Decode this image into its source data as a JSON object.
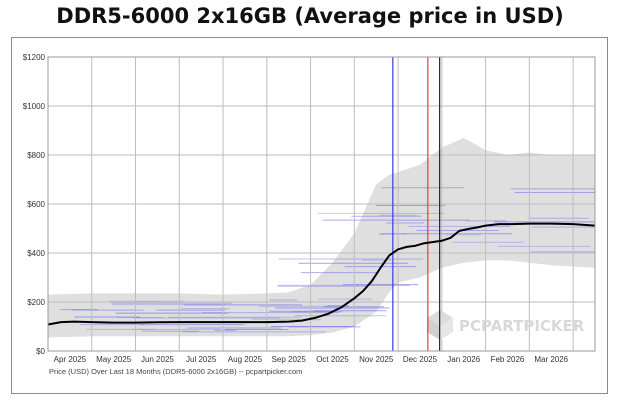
{
  "title": "DDR5-6000 2x16GB (Average price in USD)",
  "chart_data": {
    "type": "line",
    "title": "DDR5-6000 2x16GB (Average price in USD)",
    "xlabel": "Price (USD) Over Last 18 Months (DDR5-6000 2x16GB) -- pcpartpicker.com",
    "ylabel": "",
    "ylim": [
      0,
      1200
    ],
    "xlim": [
      0,
      12.5
    ],
    "y_ticks": [
      0,
      200,
      400,
      600,
      800,
      1000,
      1200
    ],
    "y_tick_labels": [
      "$0",
      "$200",
      "$400",
      "$600",
      "$800",
      "$1000",
      "$1200"
    ],
    "x_tick_labels": [
      "Apr 2025",
      "May 2025",
      "Jun 2025",
      "Jul 2025",
      "Aug 2025",
      "Sep 2025",
      "Oct 2025",
      "Nov 2025",
      "Dec 2025",
      "Jan 2026",
      "Feb 2026",
      "Mar 2026"
    ],
    "x_tick_positions": [
      0.5,
      1.5,
      2.5,
      3.5,
      4.5,
      5.5,
      6.5,
      7.5,
      8.5,
      9.5,
      10.5,
      11.5
    ],
    "grid": true,
    "series": [
      {
        "name": "Average price",
        "color": "#000000",
        "x": [
          0,
          0.3,
          0.6,
          1,
          1.5,
          2,
          2.5,
          3,
          3.5,
          4,
          4.5,
          5,
          5.5,
          5.8,
          6.1,
          6.4,
          6.7,
          7,
          7.2,
          7.4,
          7.6,
          7.8,
          8,
          8.2,
          8.4,
          8.6,
          8.8,
          9,
          9.2,
          9.4,
          9.6,
          9.8,
          10,
          10.3,
          10.6,
          11,
          11.5,
          12,
          12.5
        ],
        "y": [
          108,
          118,
          120,
          118,
          116,
          116,
          117,
          118,
          118,
          118,
          118,
          118,
          120,
          124,
          135,
          152,
          178,
          215,
          245,
          285,
          340,
          390,
          415,
          425,
          430,
          440,
          445,
          450,
          462,
          490,
          498,
          504,
          512,
          518,
          518,
          520,
          520,
          518,
          512
        ]
      },
      {
        "name": "Individual listings range",
        "color": "#d9d9d9",
        "x": [
          0,
          1,
          2,
          3,
          4,
          5,
          5.5,
          6,
          6.5,
          7,
          7.5,
          7.8,
          8,
          8.5,
          9,
          9.5,
          10,
          10.5,
          11,
          11.5,
          12,
          12.5
        ],
        "y_low": [
          55,
          60,
          60,
          60,
          60,
          60,
          60,
          65,
          75,
          100,
          160,
          240,
          280,
          300,
          340,
          360,
          370,
          370,
          360,
          350,
          345,
          340
        ],
        "y_high": [
          230,
          235,
          235,
          235,
          230,
          235,
          240,
          270,
          360,
          480,
          680,
          720,
          730,
          760,
          830,
          870,
          820,
          800,
          810,
          800,
          800,
          800
        ]
      }
    ],
    "vertical_markers": [
      {
        "name": "blue marker",
        "x": 7.88,
        "color": "#3a3adc"
      },
      {
        "name": "red marker",
        "x": 8.68,
        "color": "#e04040"
      },
      {
        "name": "dark marker",
        "x": 8.95,
        "color": "#222222"
      }
    ],
    "watermark": "PCPARTPICKER"
  }
}
